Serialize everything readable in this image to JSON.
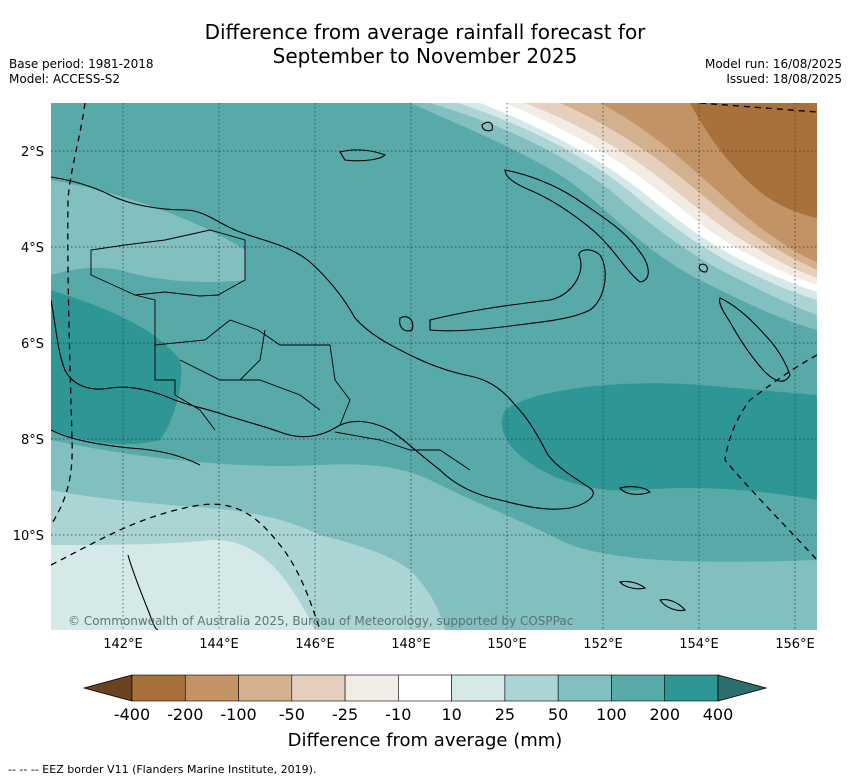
{
  "header": {
    "title_line1": "Difference from average rainfall forecast for",
    "title_line2": "September to November 2025",
    "base_period": "Base period: 1981-2018",
    "model": "Model: ACCESS-S2",
    "model_run": "Model run: 16/08/2025",
    "issued": "Issued: 18/08/2025"
  },
  "map": {
    "lat_labels": [
      "2°S",
      "4°S",
      "6°S",
      "8°S",
      "10°S"
    ],
    "lon_labels": [
      "142°E",
      "144°E",
      "146°E",
      "148°E",
      "150°E",
      "152°E",
      "154°E",
      "156°E"
    ],
    "copyright": "© Commonwealth of Australia 2025, Bureau of Meteorology, supported by COSPPac"
  },
  "colorbar": {
    "ticks": [
      "-400",
      "-200",
      "-100",
      "-50",
      "-25",
      "-10",
      "10",
      "25",
      "50",
      "100",
      "200",
      "400"
    ],
    "colors": [
      "#6b4321",
      "#a8703a",
      "#c29365",
      "#d3b08e",
      "#e6d0bd",
      "#f1ece6",
      "#ffffff",
      "#d4e9e8",
      "#abd5d4",
      "#82bfbf",
      "#58aaa9",
      "#2f9696",
      "#2b706d"
    ],
    "label": "Difference from average (mm)"
  },
  "footer": {
    "eez_note": "--  --  -- EEZ border V11 (Flanders Marine Institute, 2019)."
  }
}
